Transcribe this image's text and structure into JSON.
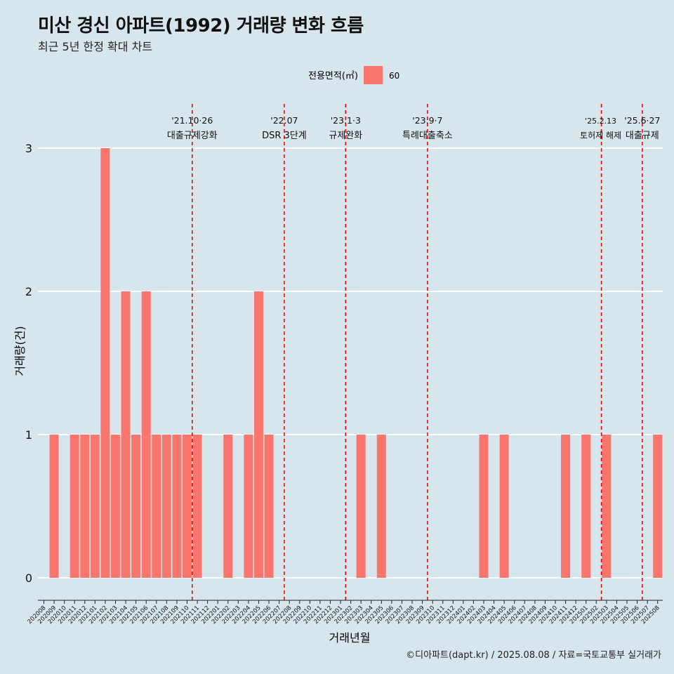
{
  "title": "미산 경신 아파트(1992) 거래량 변화 흐름",
  "subtitle": "최근 5년 한정 확대 차트",
  "caption": "©디아파트(dapt.kr) / 2025.08.08 / 자료=국토교통부 실거래가",
  "chart_data": {
    "type": "bar",
    "xlabel": "거래년월",
    "ylabel": "거래량(건)",
    "ylim": [
      0,
      3
    ],
    "yticks": [
      0,
      1,
      2,
      3
    ],
    "grid": "horizontal",
    "legend": {
      "title": "전용면적(㎡)",
      "position": "top",
      "entries": [
        {
          "label": "60",
          "color": "#f8766d"
        }
      ]
    },
    "categories": [
      "202008",
      "202009",
      "202010",
      "202011",
      "202012",
      "202101",
      "202102",
      "202103",
      "202104",
      "202105",
      "202106",
      "202107",
      "202108",
      "202109",
      "202110",
      "202111",
      "202112",
      "202201",
      "202202",
      "202203",
      "202204",
      "202205",
      "202206",
      "202207",
      "202208",
      "202209",
      "202210",
      "202211",
      "202212",
      "202301",
      "202302",
      "202303",
      "202304",
      "202305",
      "202306",
      "202307",
      "202308",
      "202309",
      "202310",
      "202311",
      "202312",
      "202401",
      "202402",
      "202403",
      "202404",
      "202405",
      "202406",
      "202407",
      "202408",
      "202409",
      "202410",
      "202411",
      "202412",
      "202501",
      "202502",
      "202503",
      "202504",
      "202505",
      "202506",
      "202507",
      "202508"
    ],
    "series": [
      {
        "name": "60",
        "color": "#f8766d",
        "values": [
          0,
          1,
          0,
          1,
          1,
          1,
          3,
          1,
          2,
          1,
          2,
          1,
          1,
          1,
          1,
          1,
          0,
          0,
          1,
          0,
          1,
          2,
          1,
          0,
          0,
          0,
          0,
          0,
          0,
          0,
          0,
          1,
          0,
          1,
          0,
          0,
          0,
          0,
          0,
          0,
          0,
          0,
          0,
          1,
          0,
          1,
          0,
          0,
          0,
          0,
          0,
          1,
          0,
          1,
          0,
          1,
          0,
          0,
          0,
          0,
          1
        ]
      }
    ],
    "annotations": [
      {
        "after": "202110",
        "date": "'21.10·26",
        "label": "대출규제강화"
      },
      {
        "after": "202207",
        "date": "'22.07",
        "label": "DSR 3단계"
      },
      {
        "after": "202301",
        "date": "'23.1·3",
        "label": "규제완화"
      },
      {
        "after": "202309",
        "date": "'23.9·7",
        "label": "특례대출축소"
      },
      {
        "after": "202502",
        "date": "'25.2.13",
        "label": "토허제 해제"
      },
      {
        "after": "202506",
        "date": "'25.6·27",
        "label": "대출규제"
      }
    ],
    "annotation_color": "#e00000"
  }
}
